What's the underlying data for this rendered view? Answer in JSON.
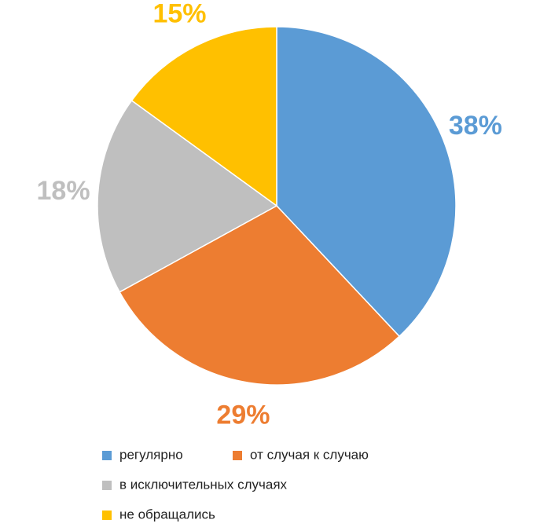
{
  "chart_data": {
    "type": "pie",
    "categories": [
      "регулярно",
      "от случая к случаю",
      "в исключительных случаях",
      "не обращались"
    ],
    "values": [
      38,
      29,
      18,
      15
    ],
    "value_labels": [
      "38%",
      "29%",
      "18%",
      "15%"
    ],
    "colors": [
      "#5b9bd5",
      "#ed7d31",
      "#bfbfbf",
      "#ffc000"
    ],
    "legend": "bottom"
  }
}
